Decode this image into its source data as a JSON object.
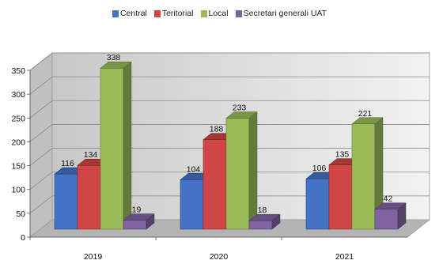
{
  "chart_data": {
    "type": "bar",
    "title": "",
    "xlabel": "",
    "ylabel": "",
    "categories": [
      "2019",
      "2020",
      "2021"
    ],
    "series": [
      {
        "name": "Central",
        "values": [
          116,
          104,
          106
        ],
        "color": "#4472C4"
      },
      {
        "name": "Teritorial",
        "values": [
          134,
          188,
          135
        ],
        "color": "#D04545"
      },
      {
        "name": "Local",
        "values": [
          338,
          233,
          221
        ],
        "color": "#9BBB59"
      },
      {
        "name": "Secretari generali UAT",
        "values": [
          19,
          18,
          42
        ],
        "color": "#8064A2"
      }
    ],
    "ylim": [
      0,
      350
    ],
    "yticks": [
      "0",
      "50",
      "100",
      "150",
      "200",
      "250",
      "300",
      "350"
    ],
    "grid": true,
    "legend_position": "top-center",
    "style": "3d-clustered-column"
  }
}
